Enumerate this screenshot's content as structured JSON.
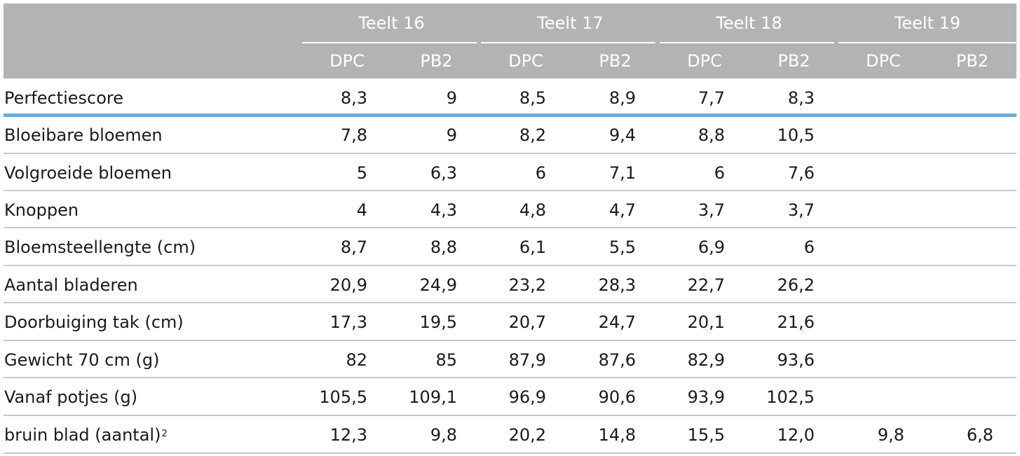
{
  "header": {
    "groups": [
      "Teelt 16",
      "Teelt 17",
      "Teelt 18",
      "Teelt 19"
    ],
    "subcolumns": [
      "DPC",
      "PB2",
      "DPC",
      "PB2",
      "DPC",
      "PB2",
      "DPC",
      "PB2"
    ]
  },
  "rows": [
    {
      "label": "Perfectiescore",
      "sup": "",
      "values": [
        "8,3",
        "9",
        "8,5",
        "8,9",
        "7,7",
        "8,3",
        "",
        ""
      ]
    },
    {
      "label": "Bloeibare bloemen",
      "sup": "",
      "values": [
        "7,8",
        "9",
        "8,2",
        "9,4",
        "8,8",
        "10,5",
        "",
        ""
      ]
    },
    {
      "label": "Volgroeide bloemen",
      "sup": "",
      "values": [
        "5",
        "6,3",
        "6",
        "7,1",
        "6",
        "7,6",
        "",
        ""
      ]
    },
    {
      "label": "Knoppen",
      "sup": "",
      "values": [
        "4",
        "4,3",
        "4,8",
        "4,7",
        "3,7",
        "3,7",
        "",
        ""
      ]
    },
    {
      "label": "Bloemsteellengte (cm)",
      "sup": "",
      "values": [
        "8,7",
        "8,8",
        "6,1",
        "5,5",
        "6,9",
        "6",
        "",
        ""
      ]
    },
    {
      "label": "Aantal bladeren",
      "sup": "",
      "values": [
        "20,9",
        "24,9",
        "23,2",
        "28,3",
        "22,7",
        "26,2",
        "",
        ""
      ]
    },
    {
      "label": "Doorbuiging tak (cm)",
      "sup": "",
      "values": [
        "17,3",
        "19,5",
        "20,7",
        "24,7",
        "20,1",
        "21,6",
        "",
        ""
      ]
    },
    {
      "label": "Gewicht 70 cm (g)",
      "sup": "",
      "values": [
        "82",
        "85",
        "87,9",
        "87,6",
        "82,9",
        "93,6",
        "",
        ""
      ]
    },
    {
      "label": "Vanaf potjes (g)",
      "sup": "",
      "values": [
        "105,5",
        "109,1",
        "96,9",
        "90,6",
        "93,9",
        "102,5",
        "",
        ""
      ]
    },
    {
      "label": "bruin blad (aantal)",
      "sup": "2",
      "values": [
        "12,3",
        "9,8",
        "20,2",
        "14,8",
        "15,5",
        "12,0",
        "9,8",
        "6,8"
      ]
    }
  ]
}
